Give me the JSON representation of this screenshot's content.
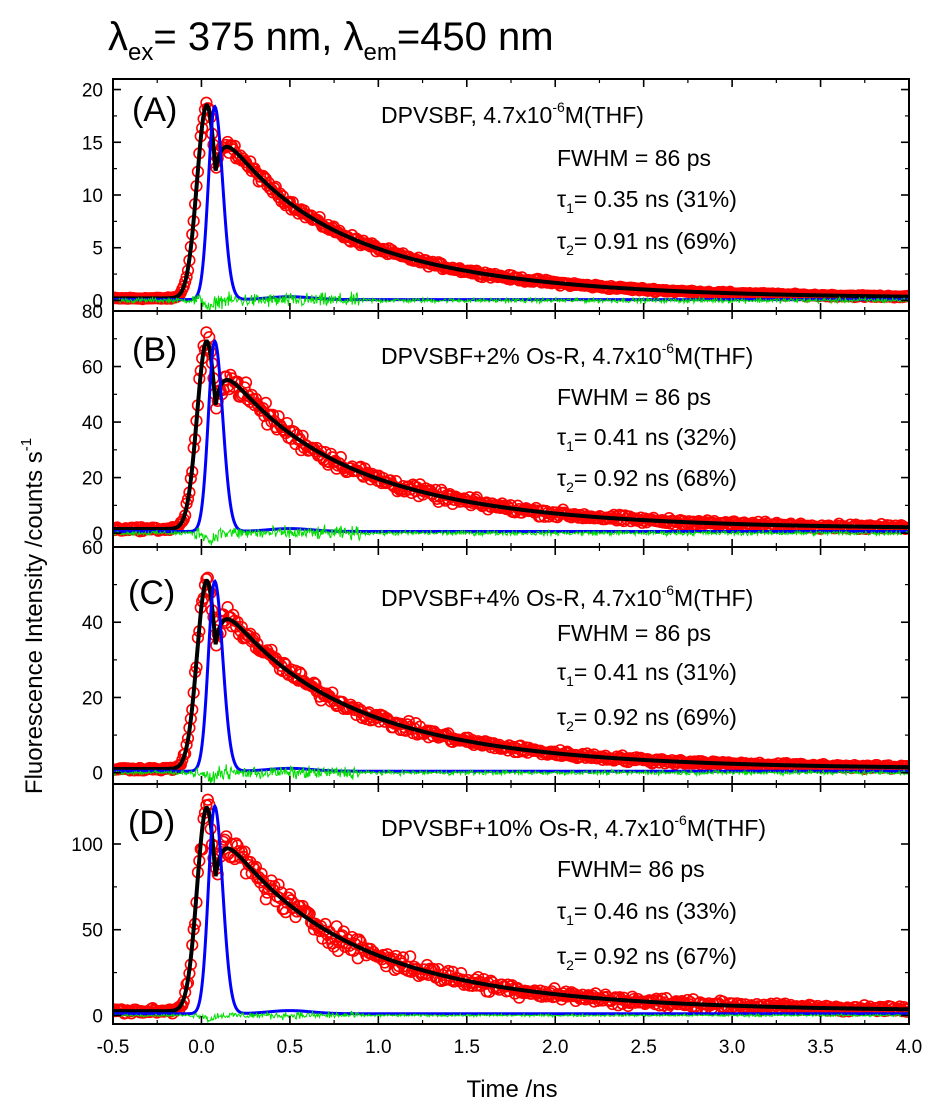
{
  "figure": {
    "title_main": "λ",
    "title_sub_ex": "ex",
    "title_mid": "= 375 nm, λ",
    "title_sub_em": "em",
    "title_end": "=450 nm",
    "ylabel_main": "Fluorescence Intensity /counts s",
    "ylabel_sup": "-1",
    "xlabel": "Time /ns"
  },
  "colors": {
    "data": "#ff0000",
    "fit": "#000000",
    "irf": "#0000ff",
    "residual": "#00dd00"
  },
  "chart_data": [
    {
      "type": "line",
      "panel_label": "(A)",
      "sample_label": "DPVSBF, 4.7x10",
      "sample_exp": "-6",
      "sample_suffix": "M(THF)",
      "fwhm_text": "FWHM = 86 ps",
      "tau1_value": "= 0.35 ns (31%)",
      "tau2_value": "= 0.91 ns (69%)",
      "tau1_ns": 0.35,
      "a1_pct": 31,
      "tau2_ns": 0.91,
      "a2_pct": 69,
      "fwhm_ps": 86,
      "peak": 18.5,
      "irf_peak": 18.3,
      "baseline": 0.2,
      "xlim": [
        -0.5,
        4.0
      ],
      "ylim": [
        -1,
        21
      ],
      "yticks": [
        0,
        5,
        10,
        15,
        20
      ],
      "ytick_labels": [
        "0",
        "5",
        "10",
        "15",
        "20"
      ],
      "residual_amp": 1.0
    },
    {
      "type": "line",
      "panel_label": "(B)",
      "sample_label": "DPVSBF+2% Os-R, 4.7x10",
      "sample_exp": "-6",
      "sample_suffix": "M(THF)",
      "fwhm_text": "FWHM = 86 ps",
      "tau1_value": "= 0.41 ns (32%)",
      "tau2_value": "= 0.92 ns (68%)",
      "tau1_ns": 0.41,
      "a1_pct": 32,
      "tau2_ns": 0.92,
      "a2_pct": 68,
      "fwhm_ps": 86,
      "peak": 69,
      "irf_peak": 68.5,
      "baseline": 1.5,
      "xlim": [
        -0.5,
        4.0
      ],
      "ylim": [
        -5,
        80
      ],
      "yticks": [
        0,
        20,
        40,
        60,
        80
      ],
      "ytick_labels": [
        "0",
        "20",
        "40",
        "60",
        "80"
      ],
      "residual_amp": 3.5
    },
    {
      "type": "line",
      "panel_label": "(C)",
      "sample_label": "DPVSBF+4% Os-R, 4.7x10",
      "sample_exp": "-6",
      "sample_suffix": "M(THF)",
      "fwhm_text": "FWHM = 86 ps",
      "tau1_value": "= 0.41 ns (31%)",
      "tau2_value": "= 0.92 ns (69%)",
      "tau1_ns": 0.41,
      "a1_pct": 31,
      "tau2_ns": 0.92,
      "a2_pct": 69,
      "fwhm_ps": 86,
      "peak": 51,
      "irf_peak": 50.5,
      "baseline": 1.0,
      "xlim": [
        -0.5,
        4.0
      ],
      "ylim": [
        -3,
        60
      ],
      "yticks": [
        0,
        20,
        40,
        60
      ],
      "ytick_labels": [
        "0",
        "20",
        "40",
        "60"
      ],
      "residual_amp": 2.5
    },
    {
      "type": "line",
      "panel_label": "(D)",
      "sample_label": "DPVSBF+10% Os-R, 4.7x10",
      "sample_exp": "-6",
      "sample_suffix": "M(THF)",
      "fwhm_text": "FWHM= 86 ps",
      "tau1_value": "= 0.46 ns (33%)",
      "tau2_value": "= 0.92 ns (67%)",
      "tau1_ns": 0.46,
      "a1_pct": 33,
      "tau2_ns": 0.92,
      "a2_pct": 67,
      "fwhm_ps": 86,
      "peak": 121,
      "irf_peak": 121,
      "baseline": 2.5,
      "xlim": [
        -0.5,
        4.0
      ],
      "ylim": [
        -5,
        135
      ],
      "yticks": [
        0,
        50,
        100
      ],
      "ytick_labels": [
        "0",
        "50",
        "100"
      ],
      "residual_amp": 3.0
    }
  ],
  "xaxis": {
    "ticks": [
      -0.5,
      0.0,
      0.5,
      1.0,
      1.5,
      2.0,
      2.5,
      3.0,
      3.5,
      4.0
    ],
    "tick_labels": [
      "-0.5",
      "0.0",
      "0.5",
      "1.0",
      "1.5",
      "2.0",
      "2.5",
      "3.0",
      "3.5",
      "4.0"
    ]
  }
}
